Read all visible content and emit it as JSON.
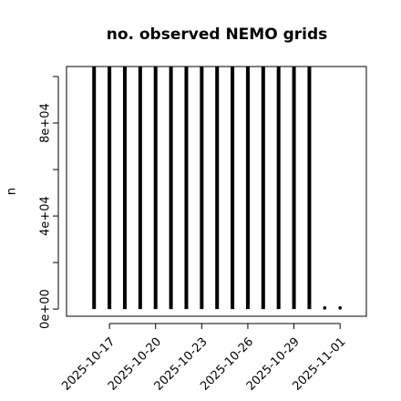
{
  "chart_data": {
    "type": "histogram_lines",
    "title": "no. observed NEMO grids",
    "y_label": "n",
    "x": [
      "2025-10-16",
      "2025-10-17",
      "2025-10-18",
      "2025-10-19",
      "2025-10-20",
      "2025-10-21",
      "2025-10-22",
      "2025-10-23",
      "2025-10-24",
      "2025-10-25",
      "2025-10-26",
      "2025-10-27",
      "2025-10-28",
      "2025-10-29",
      "2025-10-30",
      "2025-10-31",
      "2025-11-01"
    ],
    "values": [
      104300,
      104300,
      104300,
      104300,
      104300,
      104300,
      104300,
      104300,
      104300,
      104300,
      104300,
      104300,
      104300,
      104300,
      104300,
      500,
      500
    ],
    "color": "#000000",
    "xlim": [
      "2025-10-14T05:00:00Z",
      "2025-11-02T17:00:00Z"
    ],
    "xticks": [
      "2025-10-17",
      "2025-10-20",
      "2025-10-23",
      "2025-10-26",
      "2025-10-29",
      "2025-11-01"
    ],
    "ylim": [
      -3100,
      104300
    ],
    "yticks": [
      {
        "value": 0,
        "label": "0e+00"
      },
      {
        "value": 40000,
        "label": "4e+04"
      },
      {
        "value": 80000,
        "label": "8e+04"
      }
    ],
    "minor_yticks": [
      20000,
      60000,
      100000
    ]
  }
}
